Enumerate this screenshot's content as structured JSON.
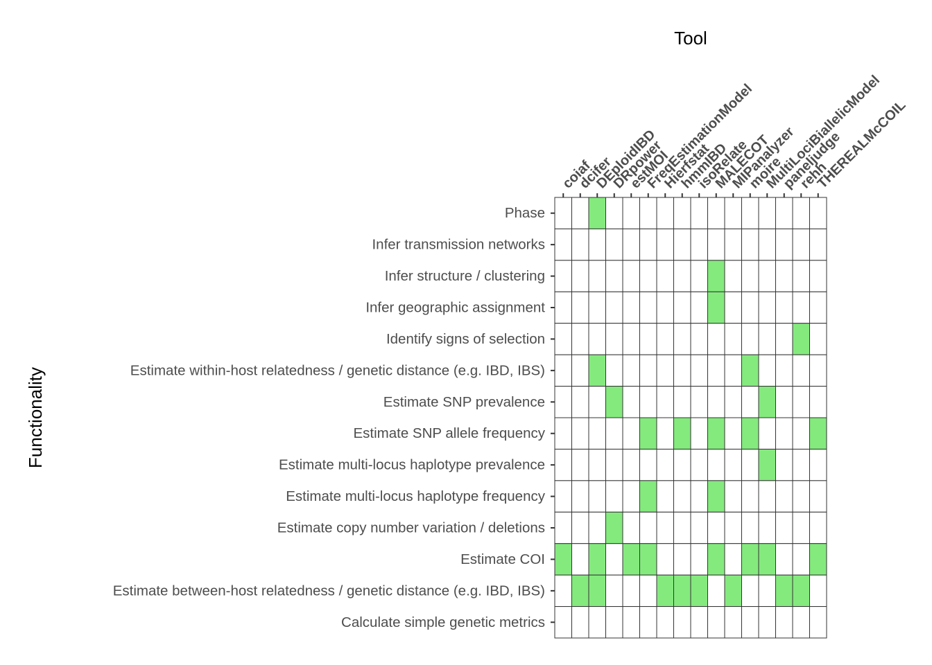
{
  "chart_data": {
    "type": "heatmap",
    "xlabel": "Tool",
    "ylabel": "Functionality",
    "legend": "none",
    "grid": false,
    "colors": {
      "present": "#84ea7e",
      "absent": "#ffffff",
      "border": "#333333"
    },
    "columns": [
      "coiaf",
      "dcifer",
      "DEploidIBD",
      "DRpower",
      "estMOI",
      "FreqEstimationModel",
      "Hierfstat",
      "hmmIBD",
      "isoRelate",
      "MALECOT",
      "MIPanalyzer",
      "moire",
      "MultiLociBiallelicModel",
      "paneljudge",
      "rehh",
      "THEREALMcCOIL"
    ],
    "rows": [
      "Phase",
      "Infer transmission networks",
      "Infer structure / clustering",
      "Infer geographic assignment",
      "Identify signs of selection",
      "Estimate within-host relatedness / genetic distance (e.g. IBD, IBS)",
      "Estimate SNP prevalence",
      "Estimate SNP allele frequency",
      "Estimate multi-locus haplotype prevalence",
      "Estimate multi-locus haplotype frequency",
      "Estimate copy number variation / deletions",
      "Estimate COI",
      "Estimate between-host relatedness / genetic distance (e.g. IBD, IBS)",
      "Calculate simple genetic metrics"
    ],
    "values": [
      [
        0,
        0,
        1,
        0,
        0,
        0,
        0,
        0,
        0,
        0,
        0,
        0,
        0,
        0,
        0,
        0
      ],
      [
        0,
        0,
        0,
        0,
        0,
        0,
        0,
        0,
        0,
        0,
        0,
        0,
        0,
        0,
        0,
        0
      ],
      [
        0,
        0,
        0,
        0,
        0,
        0,
        0,
        0,
        0,
        1,
        0,
        0,
        0,
        0,
        0,
        0
      ],
      [
        0,
        0,
        0,
        0,
        0,
        0,
        0,
        0,
        0,
        1,
        0,
        0,
        0,
        0,
        0,
        0
      ],
      [
        0,
        0,
        0,
        0,
        0,
        0,
        0,
        0,
        0,
        0,
        0,
        0,
        0,
        0,
        1,
        0
      ],
      [
        0,
        0,
        1,
        0,
        0,
        0,
        0,
        0,
        0,
        0,
        0,
        1,
        0,
        0,
        0,
        0
      ],
      [
        0,
        0,
        0,
        1,
        0,
        0,
        0,
        0,
        0,
        0,
        0,
        0,
        1,
        0,
        0,
        0
      ],
      [
        0,
        0,
        0,
        0,
        0,
        1,
        0,
        1,
        0,
        1,
        0,
        1,
        0,
        0,
        0,
        1
      ],
      [
        0,
        0,
        0,
        0,
        0,
        0,
        0,
        0,
        0,
        0,
        0,
        0,
        1,
        0,
        0,
        0
      ],
      [
        0,
        0,
        0,
        0,
        0,
        1,
        0,
        0,
        0,
        1,
        0,
        0,
        0,
        0,
        0,
        0
      ],
      [
        0,
        0,
        0,
        1,
        0,
        0,
        0,
        0,
        0,
        0,
        0,
        0,
        0,
        0,
        0,
        0
      ],
      [
        1,
        0,
        1,
        0,
        1,
        1,
        0,
        0,
        0,
        1,
        0,
        1,
        1,
        0,
        0,
        1
      ],
      [
        0,
        1,
        1,
        0,
        0,
        0,
        1,
        1,
        1,
        0,
        1,
        0,
        0,
        1,
        1,
        0
      ],
      [
        0,
        0,
        0,
        0,
        0,
        0,
        0,
        0,
        0,
        0,
        0,
        0,
        0,
        0,
        0,
        0
      ]
    ]
  }
}
